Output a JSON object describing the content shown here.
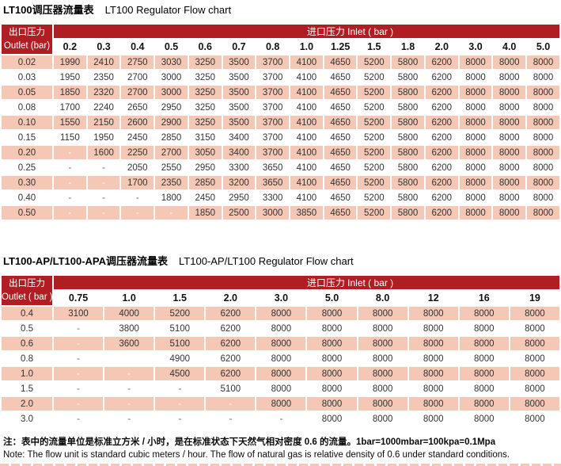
{
  "theme": {
    "accent_red": "#b01e24",
    "stripe_pink": "#f5c7b5",
    "page_bg": "#ffffff"
  },
  "table1": {
    "title_zh": "LT100调压器流量表",
    "title_en": "LT100 Regulator Flow chart",
    "outlet_header_zh": "出口压力",
    "outlet_header_en": "Outlet (bar)",
    "inlet_header": "进口压力 Inlet ( bar )",
    "columns": [
      "0.2",
      "0.3",
      "0.4",
      "0.5",
      "0.6",
      "0.7",
      "0.8",
      "1.0",
      "1.25",
      "1.5",
      "1.8",
      "2.0",
      "3.0",
      "4.0",
      "5.0"
    ],
    "rows": [
      {
        "outlet": "0.02",
        "values": [
          "1990",
          "2410",
          "2750",
          "3030",
          "3250",
          "3500",
          "3700",
          "4100",
          "4650",
          "5200",
          "5800",
          "6200",
          "8000",
          "8000",
          "8000"
        ]
      },
      {
        "outlet": "0.03",
        "values": [
          "1950",
          "2350",
          "2700",
          "3000",
          "3250",
          "3500",
          "3700",
          "4100",
          "4650",
          "5200",
          "5800",
          "6200",
          "8000",
          "8000",
          "8000"
        ]
      },
      {
        "outlet": "0.05",
        "values": [
          "1850",
          "2320",
          "2700",
          "3000",
          "3250",
          "3500",
          "3700",
          "4100",
          "4650",
          "5200",
          "5800",
          "6200",
          "8000",
          "8000",
          "8000"
        ]
      },
      {
        "outlet": "0.08",
        "values": [
          "1700",
          "2240",
          "2650",
          "2950",
          "3250",
          "3500",
          "3700",
          "4100",
          "4650",
          "5200",
          "5800",
          "6200",
          "8000",
          "8000",
          "8000"
        ]
      },
      {
        "outlet": "0.10",
        "values": [
          "1550",
          "2150",
          "2600",
          "2900",
          "3250",
          "3500",
          "3700",
          "4100",
          "4650",
          "5200",
          "5800",
          "6200",
          "8000",
          "8000",
          "8000"
        ]
      },
      {
        "outlet": "0.15",
        "values": [
          "1150",
          "1950",
          "2450",
          "2850",
          "3150",
          "3400",
          "3700",
          "4100",
          "4650",
          "5200",
          "5800",
          "6200",
          "8000",
          "8000",
          "8000"
        ]
      },
      {
        "outlet": "0.20",
        "values": [
          "-",
          "1600",
          "2250",
          "2700",
          "3050",
          "3400",
          "3700",
          "4100",
          "4650",
          "5200",
          "5800",
          "6200",
          "8000",
          "8000",
          "8000"
        ]
      },
      {
        "outlet": "0.25",
        "values": [
          "-",
          "-",
          "2050",
          "2550",
          "2950",
          "3300",
          "3650",
          "4100",
          "4650",
          "5200",
          "5800",
          "6200",
          "8000",
          "8000",
          "8000"
        ]
      },
      {
        "outlet": "0.30",
        "values": [
          "-",
          "-",
          "1700",
          "2350",
          "2850",
          "3200",
          "3650",
          "4100",
          "4650",
          "5200",
          "5800",
          "6200",
          "8000",
          "8000",
          "8000"
        ]
      },
      {
        "outlet": "0.40",
        "values": [
          "-",
          "-",
          "-",
          "1800",
          "2450",
          "2950",
          "3300",
          "4100",
          "4650",
          "5200",
          "5800",
          "6200",
          "8000",
          "8000",
          "8000"
        ]
      },
      {
        "outlet": "0.50",
        "values": [
          "-",
          "-",
          "-",
          "-",
          "1850",
          "2500",
          "3000",
          "3850",
          "4650",
          "5200",
          "5800",
          "6200",
          "8000",
          "8000",
          "8000"
        ]
      }
    ]
  },
  "table2": {
    "title_zh": "LT100-AP/LT100-APA调压器流量表",
    "title_en": "LT100-AP/LT100  Regulator Flow chart",
    "outlet_header_zh": "出口压力",
    "outlet_header_en": "Outlet ( bar )",
    "inlet_header": "进口压力 Inlet ( bar )",
    "columns": [
      "0.75",
      "1.0",
      "1.5",
      "2.0",
      "3.0",
      "5.0",
      "8.0",
      "12",
      "16",
      "19"
    ],
    "rows": [
      {
        "outlet": "0.4",
        "values": [
          "3100",
          "4000",
          "5200",
          "6200",
          "8000",
          "8000",
          "8000",
          "8000",
          "8000",
          "8000"
        ]
      },
      {
        "outlet": "0.5",
        "values": [
          "-",
          "3800",
          "5100",
          "6200",
          "8000",
          "8000",
          "8000",
          "8000",
          "8000",
          "8000"
        ]
      },
      {
        "outlet": "0.6",
        "values": [
          "-",
          "3600",
          "5100",
          "6200",
          "8000",
          "8000",
          "8000",
          "8000",
          "8000",
          "8000"
        ]
      },
      {
        "outlet": "0.8",
        "values": [
          "-",
          "",
          "4900",
          "6200",
          "8000",
          "8000",
          "8000",
          "8000",
          "8000",
          "8000"
        ]
      },
      {
        "outlet": "1.0",
        "values": [
          "-",
          "-",
          "4500",
          "6200",
          "8000",
          "8000",
          "8000",
          "8000",
          "8000",
          "8000"
        ]
      },
      {
        "outlet": "1.5",
        "values": [
          "-",
          "-",
          "-",
          "5100",
          "8000",
          "8000",
          "8000",
          "8000",
          "8000",
          "8000"
        ]
      },
      {
        "outlet": "2.0",
        "values": [
          "-",
          "-",
          "-",
          "-",
          "8000",
          "8000",
          "8000",
          "8000",
          "8000",
          "8000"
        ]
      },
      {
        "outlet": "3.0",
        "values": [
          "-",
          "-",
          "-",
          "-",
          "-",
          "8000",
          "8000",
          "8000",
          "8000",
          "8000"
        ]
      }
    ]
  },
  "notes": {
    "zh": "注：表中的流量单位是标准立方米 / 小时，是在标准状态下天然气相对密度 0.6 的流量。1bar=1000mbar=100kpa=0.1Mpa",
    "en": "Note: The flow unit is standard cubic meters / hour. The flow of natural gas is relative density of 0.6 under standard conditions."
  }
}
